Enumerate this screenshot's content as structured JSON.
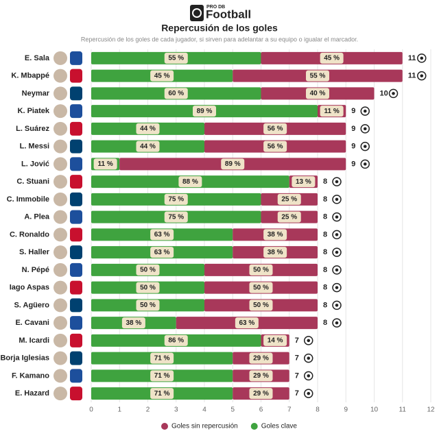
{
  "chart_data": {
    "type": "stacked-barh",
    "brand_small": "PRO DB",
    "brand": "Football",
    "title": "Repercusión de los goles",
    "subtitle": "Repercusión de los goles de cada jugador, si sirven para adelantar a su equipo o igualar el marcador.",
    "categories": [
      "E. Sala",
      "K. Mbappé",
      "Neymar",
      "K. Piatek",
      "L. Suárez",
      "L. Messi",
      "L. Jović",
      "C. Stuani",
      "C. Immobile",
      "A. Plea",
      "C. Ronaldo",
      "S. Haller",
      "N. Pépé",
      "Iago Aspas",
      "S. Agüero",
      "E. Cavani",
      "M. Icardi",
      "Borja Iglesias",
      "F. Kamano",
      "E. Hazard"
    ],
    "series": [
      {
        "name": "Goles clave",
        "color": "#3fa33f",
        "values": [
          6,
          5,
          6,
          8,
          4,
          4,
          1,
          7,
          6,
          6,
          5,
          5,
          4,
          4,
          4,
          3,
          6,
          5,
          5,
          5
        ],
        "value_labels": [
          "55 %",
          "45 %",
          "60 %",
          "89 %",
          "44 %",
          "44 %",
          "11 %",
          "88 %",
          "75 %",
          "75 %",
          "63 %",
          "63 %",
          "50 %",
          "50 %",
          "50 %",
          "38 %",
          "86 %",
          "71 %",
          "71 %",
          "71 %"
        ]
      },
      {
        "name": "Goles sin repercusión",
        "color": "#a8385a",
        "values": [
          5,
          6,
          4,
          1,
          5,
          5,
          8,
          1,
          2,
          2,
          3,
          3,
          4,
          4,
          4,
          5,
          1,
          2,
          2,
          2
        ],
        "value_labels": [
          "45 %",
          "55 %",
          "40 %",
          "11 %",
          "56 %",
          "56 %",
          "89 %",
          "13 %",
          "25 %",
          "25 %",
          "38 %",
          "38 %",
          "50 %",
          "50 %",
          "50 %",
          "63 %",
          "14 %",
          "29 %",
          "29 %",
          "29 %"
        ]
      }
    ],
    "totals": [
      11,
      11,
      10,
      9,
      9,
      9,
      9,
      8,
      8,
      8,
      8,
      8,
      8,
      8,
      8,
      8,
      7,
      7,
      7,
      7
    ],
    "xlim": [
      0,
      12
    ],
    "xticks": [
      0,
      1,
      2,
      3,
      4,
      5,
      6,
      7,
      8,
      9,
      10,
      11,
      12
    ],
    "grid": true
  }
}
